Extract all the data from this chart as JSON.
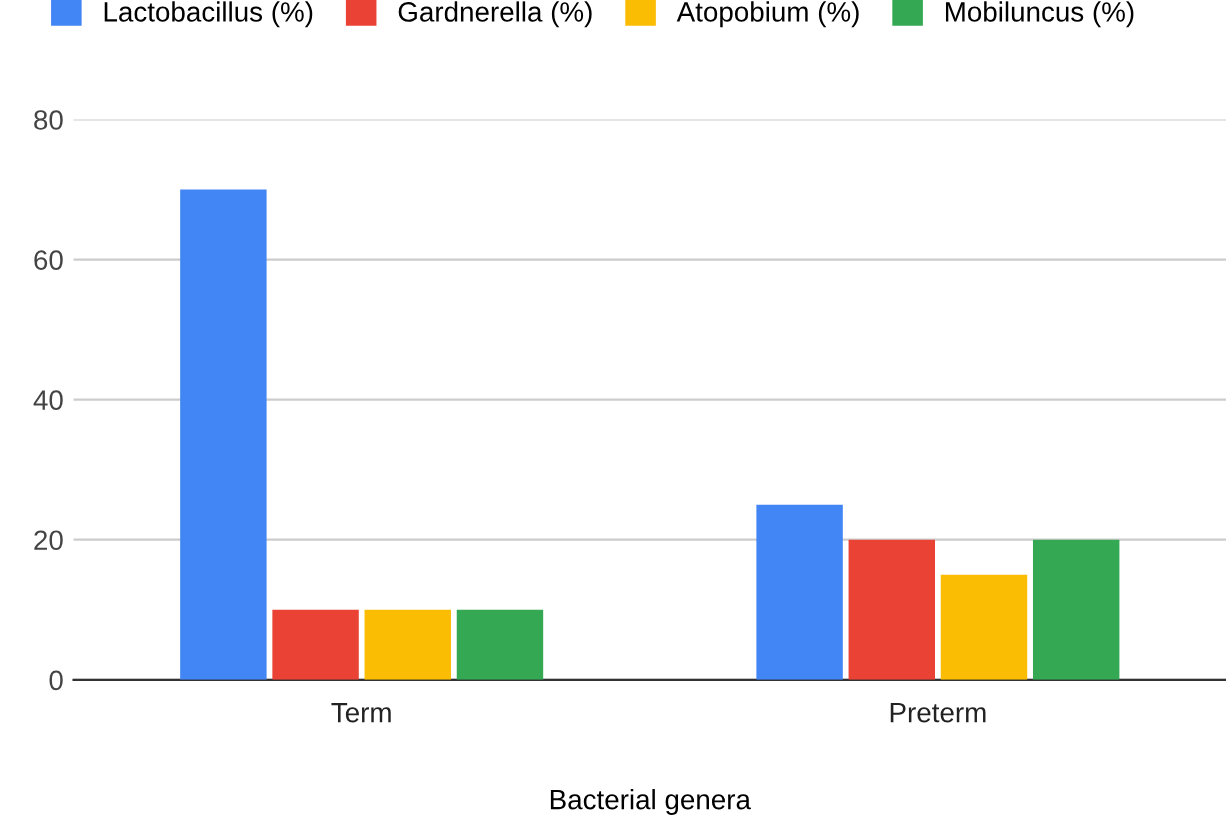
{
  "chart_data": {
    "type": "bar",
    "xlabel": "Bacterial genera",
    "categories": [
      "Term",
      "Preterm"
    ],
    "series": [
      {
        "name": "Lactobacillus (%)",
        "color": "#4285f4",
        "values": [
          70,
          25
        ]
      },
      {
        "name": "Gardnerella (%)",
        "color": "#ea4335",
        "values": [
          10,
          20
        ]
      },
      {
        "name": "Atopobium (%)",
        "color": "#fbbc04",
        "values": [
          10,
          15
        ]
      },
      {
        "name": "Mobiluncus (%)",
        "color": "#34a853",
        "values": [
          10,
          20
        ]
      }
    ],
    "ylim": [
      0,
      80
    ],
    "yticks": [
      0,
      20,
      40,
      60,
      80
    ],
    "grid": "y",
    "legend": "top left"
  }
}
